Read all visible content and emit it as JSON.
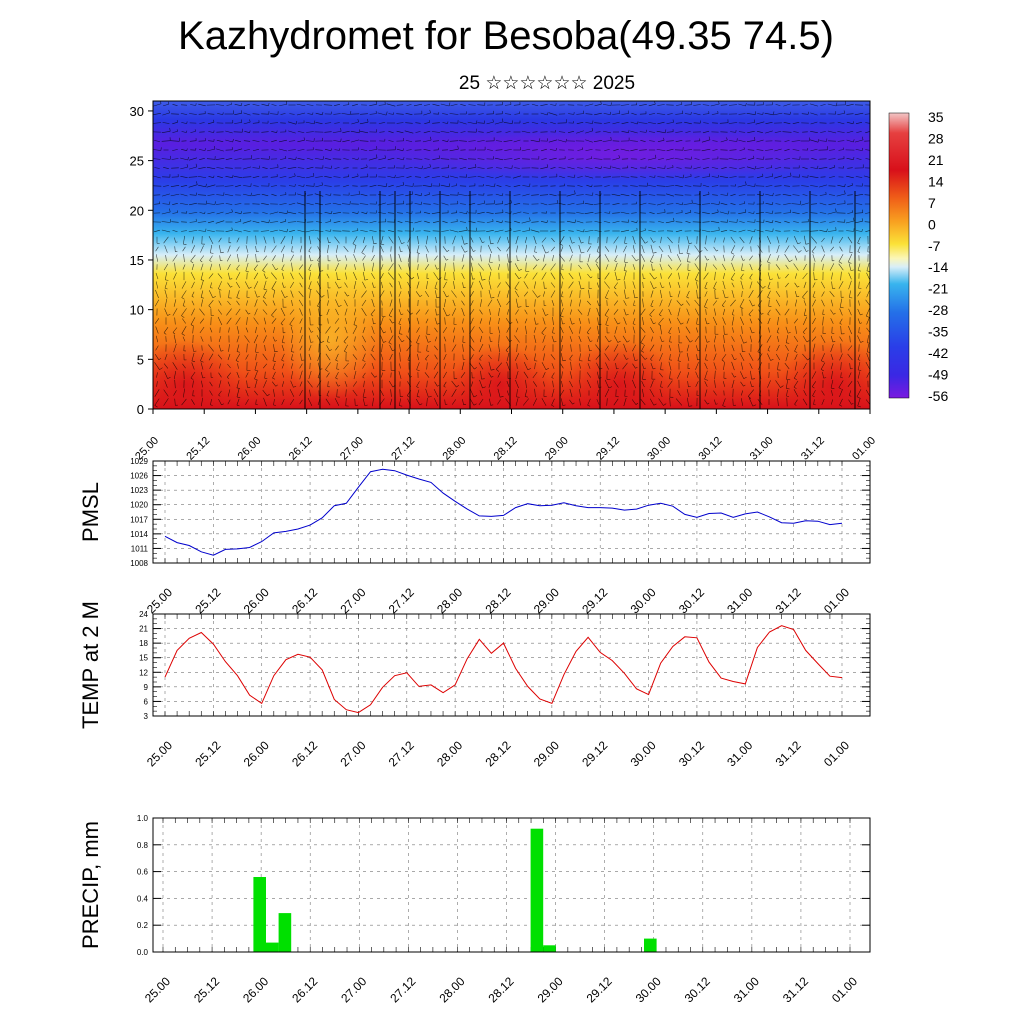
{
  "title": "Kazhydromet for Besoba(49.35 74.5)",
  "subtitle": "25 ☆☆☆☆☆☆ 2025",
  "chart_data": [
    {
      "type": "heatmap",
      "name": "temperature-wind-cross-section",
      "y_ticks": [
        "0",
        "5",
        "10",
        "15",
        "20",
        "25",
        "30"
      ],
      "ylim": [
        0,
        31
      ],
      "x_ticks": [
        "25.00",
        "25.12",
        "26.00",
        "26.12",
        "27.00",
        "27.12",
        "28.00",
        "28.12",
        "29.00",
        "29.12",
        "30.00",
        "30.12",
        "31.00",
        "31.12",
        "01.00"
      ],
      "colorbar_labels": [
        "35",
        "28",
        "21",
        "14",
        "7",
        "0",
        "-7",
        "-14",
        "-21",
        "-28",
        "-35",
        "-42",
        "-49",
        "-56"
      ],
      "colors": {
        "warm": "#d8101a",
        "orange": "#f89018",
        "yellow": "#fbe238",
        "cyan": "#38b4ee",
        "blue": "#2a3ee8",
        "violet": "#7a1ae0"
      }
    },
    {
      "type": "line",
      "name": "pmsl",
      "ylabel": "PMSL",
      "ylim": [
        1008,
        1029
      ],
      "y_ticks": [
        "1008",
        "1011",
        "1014",
        "1017",
        "1020",
        "1023",
        "1026",
        "1029"
      ],
      "x_ticks": [
        "25.00",
        "25.12",
        "26.00",
        "26.12",
        "27.00",
        "27.12",
        "28.00",
        "28.12",
        "29.00",
        "29.12",
        "30.00",
        "30.12",
        "31.00",
        "31.12",
        "01.00"
      ],
      "color": "#0000cc",
      "values": [
        1013.5,
        1012.2,
        1011.6,
        1010.3,
        1009.6,
        1010.8,
        1010.9,
        1011.2,
        1012.4,
        1014.2,
        1014.5,
        1015.0,
        1015.8,
        1017.3,
        1019.8,
        1020.3,
        1023.6,
        1026.8,
        1027.3,
        1027.0,
        1026.1,
        1025.3,
        1024.6,
        1022.4,
        1020.7,
        1019.1,
        1017.7,
        1017.6,
        1017.8,
        1019.4,
        1020.2,
        1019.8,
        1019.9,
        1020.4,
        1019.8,
        1019.4,
        1019.4,
        1019.3,
        1018.9,
        1019.1,
        1019.9,
        1020.3,
        1019.7,
        1018.0,
        1017.4,
        1018.2,
        1018.3,
        1017.4,
        1018.1,
        1018.5,
        1017.5,
        1016.3,
        1016.2,
        1016.7,
        1016.6,
        1015.9,
        1016.2
      ]
    },
    {
      "type": "line",
      "name": "temp-2m",
      "ylabel": "TEMP at 2 M",
      "ylim": [
        3,
        24
      ],
      "y_ticks": [
        "3",
        "6",
        "9",
        "12",
        "15",
        "18",
        "21",
        "24"
      ],
      "x_ticks": [
        "25.00",
        "25.12",
        "26.00",
        "26.12",
        "27.00",
        "27.12",
        "28.00",
        "28.12",
        "29.00",
        "29.12",
        "30.00",
        "30.12",
        "31.00",
        "31.12",
        "01.00"
      ],
      "color": "#dd0000",
      "values": [
        11.0,
        16.5,
        19.0,
        20.2,
        17.8,
        14.2,
        11.3,
        7.3,
        5.6,
        11.3,
        14.6,
        15.7,
        15.1,
        12.5,
        6.4,
        4.3,
        3.7,
        5.3,
        8.9,
        11.3,
        11.9,
        9.1,
        9.4,
        7.8,
        9.4,
        14.8,
        18.8,
        15.9,
        18.0,
        12.8,
        9.1,
        6.5,
        5.6,
        11.5,
        16.3,
        19.2,
        16.1,
        14.4,
        11.8,
        8.6,
        7.4,
        13.9,
        17.3,
        19.3,
        19.1,
        14.1,
        10.8,
        10.1,
        9.6,
        17.1,
        20.3,
        21.6,
        20.8,
        16.5,
        13.8,
        11.2,
        10.9
      ]
    },
    {
      "type": "bar",
      "name": "precip",
      "ylabel": "PRECIP, mm",
      "ylim": [
        0,
        1.0
      ],
      "y_ticks": [
        "0.0",
        "0.2",
        "0.4",
        "0.6",
        "0.8",
        "1.0"
      ],
      "x_ticks": [
        "25.00",
        "25.12",
        "26.00",
        "26.12",
        "27.00",
        "27.12",
        "28.00",
        "28.12",
        "29.00",
        "29.12",
        "30.00",
        "30.12",
        "31.00",
        "31.12",
        "01.00"
      ],
      "color": "#00e000",
      "values": [
        0,
        0,
        0,
        0,
        0.56,
        0.07,
        0.29,
        0,
        0,
        0,
        0,
        0,
        0,
        0,
        0,
        0,
        0,
        0,
        0,
        0,
        0,
        0,
        0,
        0,
        0,
        0,
        0.92,
        0.05,
        0,
        0,
        0,
        0,
        0,
        0,
        0,
        0.1,
        0,
        0,
        0,
        0,
        0,
        0,
        0,
        0,
        0,
        0,
        0,
        0,
        0,
        0,
        0,
        0,
        0,
        0,
        0,
        0,
        0
      ]
    }
  ]
}
